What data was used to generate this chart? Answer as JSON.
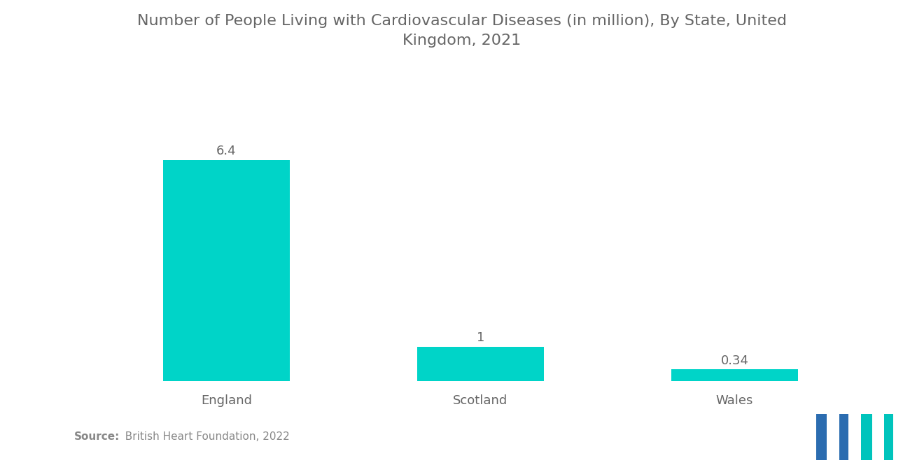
{
  "title": "Number of People Living with Cardiovascular Diseases (in million), By State, United\nKingdom, 2021",
  "categories": [
    "England",
    "Scotland",
    "Wales"
  ],
  "values": [
    6.4,
    1.0,
    0.34
  ],
  "bar_color": "#00D4C8",
  "value_labels": [
    "6.4",
    "1",
    "0.34"
  ],
  "background_color": "#ffffff",
  "title_color": "#666666",
  "label_color": "#666666",
  "value_color": "#666666",
  "source_bold": "Source:",
  "source_rest": "  British Heart Foundation, 2022",
  "ylim": [
    0,
    7.8
  ],
  "bar_width": 0.5,
  "title_fontsize": 16,
  "label_fontsize": 13,
  "value_fontsize": 13,
  "source_fontsize": 11,
  "logo_blue": "#2B6CB0",
  "logo_teal": "#00C4BC"
}
